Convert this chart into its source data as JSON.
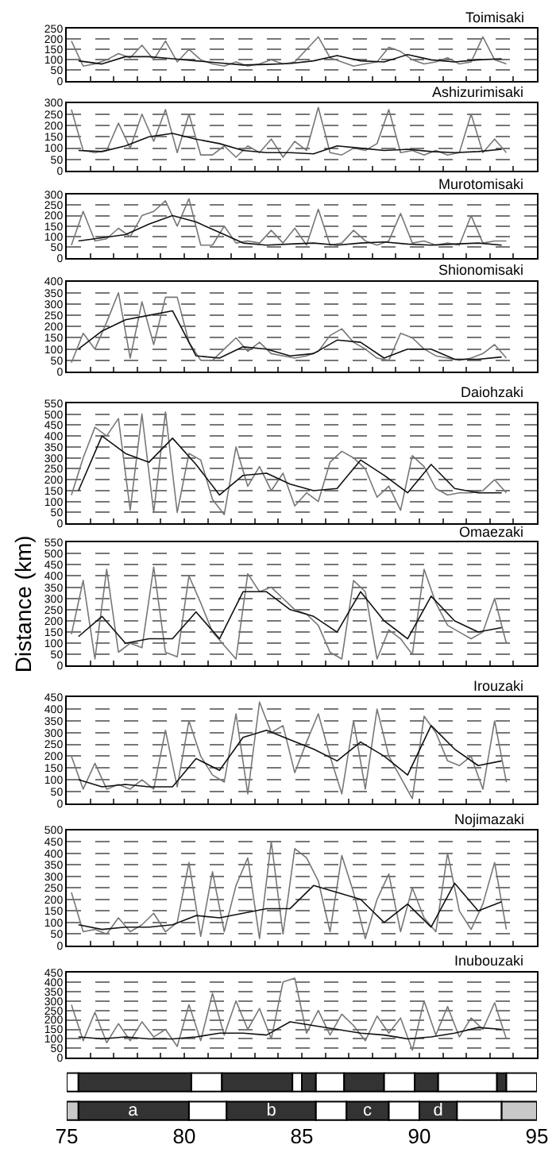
{
  "chart_data": [
    {
      "type": "line",
      "title": "Toimisaki",
      "xlim": [
        75,
        95
      ],
      "xticks": [
        75,
        76,
        77,
        78,
        79,
        80,
        81,
        82,
        83,
        84,
        85,
        86,
        87,
        88,
        89,
        90,
        91,
        92,
        93,
        94,
        95
      ],
      "ylim": [
        0,
        250
      ],
      "yticks": [
        0,
        50,
        100,
        150,
        200,
        250
      ],
      "grid": "y",
      "tick_labels": "y",
      "x": [
        75.2,
        75.7,
        76.2,
        76.7,
        77.2,
        77.7,
        78.2,
        78.7,
        79.2,
        79.7,
        80.2,
        80.7,
        81.2,
        81.7,
        82.2,
        82.7,
        83.2,
        83.7,
        84.2,
        84.7,
        85.2,
        85.7,
        86.2,
        86.7,
        87.2,
        87.7,
        88.2,
        88.7,
        89.2,
        89.7,
        90.2,
        90.7,
        91.2,
        91.7,
        92.2,
        92.7,
        93.2,
        93.7
      ],
      "series": [
        {
          "color": "#777777",
          "values": [
            190,
            70,
            80,
            100,
            130,
            110,
            170,
            100,
            190,
            90,
            150,
            100,
            80,
            70,
            90,
            70,
            80,
            100,
            80,
            90,
            150,
            210,
            110,
            90,
            70,
            80,
            90,
            160,
            140,
            100,
            80,
            90,
            110,
            80,
            90,
            210,
            100,
            80
          ]
        },
        {
          "color": "#111111",
          "x": [
            75.5,
            76.5,
            77.5,
            78.5,
            79.5,
            80.5,
            81.5,
            82.5,
            83.5,
            84.5,
            85.5,
            86.5,
            87.5,
            88.5,
            89.5,
            90.5,
            91.5,
            92.5,
            93.5
          ],
          "values": [
            95,
            80,
            115,
            115,
            105,
            95,
            85,
            75,
            78,
            82,
            95,
            120,
            95,
            90,
            125,
            100,
            90,
            100,
            105
          ]
        }
      ]
    },
    {
      "type": "line",
      "title": "Ashizurimisaki",
      "xlim": [
        75,
        95
      ],
      "xticks": [
        75,
        76,
        77,
        78,
        79,
        80,
        81,
        82,
        83,
        84,
        85,
        86,
        87,
        88,
        89,
        90,
        91,
        92,
        93,
        94,
        95
      ],
      "ylim": [
        0,
        300
      ],
      "yticks": [
        0,
        50,
        100,
        150,
        200,
        250,
        300
      ],
      "grid": "y",
      "tick_labels": "y",
      "x": [
        75.2,
        75.7,
        76.2,
        76.7,
        77.2,
        77.7,
        78.2,
        78.7,
        79.2,
        79.7,
        80.2,
        80.7,
        81.2,
        81.7,
        82.2,
        82.7,
        83.2,
        83.7,
        84.2,
        84.7,
        85.2,
        85.7,
        86.2,
        86.7,
        87.2,
        87.7,
        88.2,
        88.7,
        89.2,
        89.7,
        90.2,
        90.7,
        91.2,
        91.7,
        92.2,
        92.7,
        93.2,
        93.7
      ],
      "series": [
        {
          "color": "#777777",
          "values": [
            270,
            90,
            80,
            90,
            210,
            100,
            250,
            130,
            270,
            80,
            250,
            70,
            70,
            110,
            60,
            110,
            80,
            140,
            60,
            130,
            90,
            280,
            80,
            70,
            100,
            90,
            120,
            270,
            80,
            90,
            70,
            90,
            70,
            80,
            250,
            80,
            140,
            80
          ]
        },
        {
          "color": "#111111",
          "x": [
            75.5,
            76.5,
            77.5,
            78.5,
            79.5,
            80.5,
            81.5,
            82.5,
            83.5,
            84.5,
            85.5,
            86.5,
            87.5,
            88.5,
            89.5,
            90.5,
            91.5,
            92.5,
            93.5
          ],
          "values": [
            90,
            85,
            110,
            150,
            165,
            140,
            120,
            90,
            80,
            80,
            75,
            110,
            100,
            90,
            95,
            85,
            80,
            85,
            95
          ]
        }
      ]
    },
    {
      "type": "line",
      "title": "Murotomisaki",
      "xlim": [
        75,
        95
      ],
      "xticks": [
        75,
        76,
        77,
        78,
        79,
        80,
        81,
        82,
        83,
        84,
        85,
        86,
        87,
        88,
        89,
        90,
        91,
        92,
        93,
        94,
        95
      ],
      "ylim": [
        0,
        300
      ],
      "yticks": [
        0,
        50,
        100,
        150,
        200,
        250,
        300
      ],
      "grid": "y",
      "tick_labels": "y",
      "x": [
        75.2,
        75.7,
        76.2,
        76.7,
        77.2,
        77.7,
        78.2,
        78.7,
        79.2,
        79.7,
        80.2,
        80.7,
        81.2,
        81.7,
        82.2,
        82.7,
        83.2,
        83.7,
        84.2,
        84.7,
        85.2,
        85.7,
        86.2,
        86.7,
        87.2,
        87.7,
        88.2,
        88.7,
        89.2,
        89.7,
        90.2,
        90.7,
        91.2,
        91.7,
        92.2,
        92.7,
        93.2,
        93.7
      ],
      "series": [
        {
          "color": "#777777",
          "values": [
            60,
            220,
            80,
            90,
            140,
            100,
            200,
            220,
            270,
            150,
            280,
            60,
            60,
            150,
            70,
            80,
            70,
            130,
            70,
            140,
            60,
            230,
            60,
            70,
            130,
            80,
            60,
            80,
            210,
            70,
            80,
            60,
            70,
            60,
            200,
            70,
            80,
            80
          ]
        },
        {
          "color": "#111111",
          "x": [
            75.5,
            76.5,
            77.5,
            78.5,
            79.5,
            80.5,
            81.5,
            82.5,
            83.5,
            84.5,
            85.5,
            86.5,
            87.5,
            88.5,
            89.5,
            90.5,
            91.5,
            92.5,
            93.5
          ],
          "values": [
            80,
            95,
            110,
            160,
            200,
            170,
            120,
            70,
            60,
            65,
            70,
            60,
            70,
            75,
            65,
            60,
            65,
            70,
            60
          ]
        }
      ]
    },
    {
      "type": "line",
      "title": "Shionomisaki",
      "xlim": [
        75,
        95
      ],
      "xticks": [
        75,
        76,
        77,
        78,
        79,
        80,
        81,
        82,
        83,
        84,
        85,
        86,
        87,
        88,
        89,
        90,
        91,
        92,
        93,
        94,
        95
      ],
      "ylim": [
        0,
        400
      ],
      "yticks": [
        0,
        50,
        100,
        150,
        200,
        250,
        300,
        350,
        400
      ],
      "grid": "y",
      "tick_labels": "y",
      "x": [
        75.2,
        75.7,
        76.2,
        76.7,
        77.2,
        77.7,
        78.2,
        78.7,
        79.2,
        79.7,
        80.2,
        80.7,
        81.2,
        81.7,
        82.2,
        82.7,
        83.2,
        83.7,
        84.2,
        84.7,
        85.2,
        85.7,
        86.2,
        86.7,
        87.2,
        87.7,
        88.2,
        88.7,
        89.2,
        89.7,
        90.2,
        90.7,
        91.2,
        91.7,
        92.2,
        92.7,
        93.2,
        93.7
      ],
      "series": [
        {
          "color": "#777777",
          "values": [
            40,
            170,
            100,
            220,
            350,
            60,
            310,
            120,
            330,
            330,
            130,
            50,
            50,
            100,
            150,
            90,
            130,
            80,
            70,
            60,
            70,
            90,
            160,
            190,
            130,
            100,
            60,
            50,
            170,
            150,
            100,
            70,
            60,
            50,
            60,
            80,
            120,
            60
          ]
        },
        {
          "color": "#111111",
          "x": [
            75.5,
            76.5,
            77.5,
            78.5,
            79.5,
            80.5,
            81.5,
            82.5,
            83.5,
            84.5,
            85.5,
            86.5,
            87.5,
            88.5,
            89.5,
            90.5,
            91.5,
            92.5,
            93.5
          ],
          "values": [
            100,
            180,
            230,
            250,
            270,
            70,
            60,
            110,
            100,
            70,
            80,
            140,
            130,
            60,
            100,
            100,
            55,
            55,
            65
          ]
        }
      ]
    },
    {
      "type": "line",
      "title": "Daiohzaki",
      "xlim": [
        75,
        95
      ],
      "xticks": [
        75,
        76,
        77,
        78,
        79,
        80,
        81,
        82,
        83,
        84,
        85,
        86,
        87,
        88,
        89,
        90,
        91,
        92,
        93,
        94,
        95
      ],
      "ylim": [
        0,
        550
      ],
      "yticks": [
        0,
        50,
        100,
        150,
        200,
        250,
        300,
        350,
        400,
        450,
        500,
        550
      ],
      "grid": "y",
      "tick_labels": "y",
      "x": [
        75.2,
        75.7,
        76.2,
        76.7,
        77.2,
        77.7,
        78.2,
        78.7,
        79.2,
        79.7,
        80.2,
        80.7,
        81.2,
        81.7,
        82.2,
        82.7,
        83.2,
        83.7,
        84.2,
        84.7,
        85.2,
        85.7,
        86.2,
        86.7,
        87.2,
        87.7,
        88.2,
        88.7,
        89.2,
        89.7,
        90.2,
        90.7,
        91.2,
        91.7,
        92.2,
        92.7,
        93.2,
        93.7
      ],
      "series": [
        {
          "color": "#777777",
          "values": [
            130,
            300,
            440,
            400,
            480,
            60,
            500,
            50,
            510,
            50,
            320,
            290,
            110,
            40,
            350,
            170,
            260,
            150,
            230,
            80,
            140,
            100,
            280,
            330,
            300,
            250,
            120,
            170,
            60,
            310,
            260,
            160,
            130,
            140,
            140,
            150,
            200,
            140
          ]
        },
        {
          "color": "#111111",
          "x": [
            75.5,
            76.5,
            77.5,
            78.5,
            79.5,
            80.5,
            81.5,
            82.5,
            83.5,
            84.5,
            85.5,
            86.5,
            87.5,
            88.5,
            89.5,
            90.5,
            91.5,
            92.5,
            93.5
          ],
          "values": [
            150,
            400,
            320,
            280,
            390,
            270,
            130,
            220,
            230,
            180,
            150,
            160,
            290,
            220,
            140,
            270,
            160,
            140,
            140
          ]
        }
      ]
    },
    {
      "type": "line",
      "title": "Omaezaki",
      "ylabel": "Distance (km)",
      "xlim": [
        75,
        95
      ],
      "xticks": [
        75,
        76,
        77,
        78,
        79,
        80,
        81,
        82,
        83,
        84,
        85,
        86,
        87,
        88,
        89,
        90,
        91,
        92,
        93,
        94,
        95
      ],
      "ylim": [
        0,
        550
      ],
      "yticks": [
        0,
        50,
        100,
        150,
        200,
        250,
        300,
        350,
        400,
        450,
        500,
        550
      ],
      "grid": "y",
      "tick_labels": "y",
      "x": [
        75.2,
        75.7,
        76.2,
        76.7,
        77.2,
        77.7,
        78.2,
        78.7,
        79.2,
        79.7,
        80.2,
        80.7,
        81.2,
        81.7,
        82.2,
        82.7,
        83.2,
        83.7,
        84.2,
        84.7,
        85.2,
        85.7,
        86.2,
        86.7,
        87.2,
        87.7,
        88.2,
        88.7,
        89.2,
        89.7,
        90.2,
        90.7,
        91.2,
        91.7,
        92.2,
        92.7,
        93.2,
        93.7
      ],
      "series": [
        {
          "color": "#777777",
          "values": [
            140,
            380,
            30,
            430,
            60,
            100,
            80,
            440,
            60,
            40,
            400,
            280,
            150,
            90,
            30,
            410,
            330,
            350,
            300,
            250,
            230,
            180,
            60,
            30,
            380,
            330,
            30,
            160,
            120,
            50,
            430,
            280,
            180,
            150,
            120,
            150,
            300,
            100
          ]
        },
        {
          "color": "#111111",
          "x": [
            75.5,
            76.5,
            77.5,
            78.5,
            79.5,
            80.5,
            81.5,
            82.5,
            83.5,
            84.5,
            85.5,
            86.5,
            87.5,
            88.5,
            89.5,
            90.5,
            91.5,
            92.5,
            93.5
          ],
          "values": [
            130,
            220,
            100,
            120,
            120,
            240,
            120,
            330,
            330,
            250,
            220,
            150,
            330,
            200,
            120,
            310,
            200,
            150,
            170
          ]
        }
      ]
    },
    {
      "type": "line",
      "title": "Irouzaki",
      "xlim": [
        75,
        95
      ],
      "xticks": [
        75,
        76,
        77,
        78,
        79,
        80,
        81,
        82,
        83,
        84,
        85,
        86,
        87,
        88,
        89,
        90,
        91,
        92,
        93,
        94,
        95
      ],
      "ylim": [
        0,
        450
      ],
      "yticks": [
        0,
        50,
        100,
        150,
        200,
        250,
        300,
        350,
        400,
        450
      ],
      "grid": "y",
      "tick_labels": "y",
      "x": [
        75.2,
        75.7,
        76.2,
        76.7,
        77.2,
        77.7,
        78.2,
        78.7,
        79.2,
        79.7,
        80.2,
        80.7,
        81.2,
        81.7,
        82.2,
        82.7,
        83.2,
        83.7,
        84.2,
        84.7,
        85.2,
        85.7,
        86.2,
        86.7,
        87.2,
        87.7,
        88.2,
        88.7,
        89.2,
        89.7,
        90.2,
        90.7,
        91.2,
        91.7,
        92.2,
        92.7,
        93.2,
        93.7
      ],
      "series": [
        {
          "color": "#777777",
          "values": [
            200,
            60,
            170,
            60,
            80,
            60,
            100,
            60,
            310,
            70,
            350,
            200,
            120,
            90,
            380,
            40,
            430,
            300,
            330,
            130,
            260,
            380,
            200,
            40,
            350,
            60,
            400,
            200,
            110,
            20,
            370,
            300,
            180,
            160,
            200,
            60,
            350,
            90
          ]
        },
        {
          "color": "#111111",
          "x": [
            75.5,
            76.5,
            77.5,
            78.5,
            79.5,
            80.5,
            81.5,
            82.5,
            83.5,
            84.5,
            85.5,
            86.5,
            87.5,
            88.5,
            89.5,
            90.5,
            91.5,
            92.5,
            93.5
          ],
          "values": [
            100,
            70,
            80,
            70,
            70,
            190,
            140,
            280,
            310,
            270,
            230,
            180,
            260,
            200,
            120,
            330,
            230,
            160,
            180
          ]
        }
      ]
    },
    {
      "type": "line",
      "title": "Nojimazaki",
      "xlim": [
        75,
        95
      ],
      "xticks": [
        75,
        76,
        77,
        78,
        79,
        80,
        81,
        82,
        83,
        84,
        85,
        86,
        87,
        88,
        89,
        90,
        91,
        92,
        93,
        94,
        95
      ],
      "ylim": [
        0,
        500
      ],
      "yticks": [
        0,
        50,
        100,
        150,
        200,
        250,
        300,
        350,
        400,
        450,
        500
      ],
      "grid": "y",
      "tick_labels": "y",
      "x": [
        75.2,
        75.7,
        76.2,
        76.7,
        77.2,
        77.7,
        78.2,
        78.7,
        79.2,
        79.7,
        80.2,
        80.7,
        81.2,
        81.7,
        82.2,
        82.7,
        83.2,
        83.7,
        84.2,
        84.7,
        85.2,
        85.7,
        86.2,
        86.7,
        87.2,
        87.7,
        88.2,
        88.7,
        89.2,
        89.7,
        90.2,
        90.7,
        91.2,
        91.7,
        92.2,
        92.7,
        93.2,
        93.7
      ],
      "series": [
        {
          "color": "#777777",
          "values": [
            230,
            60,
            70,
            50,
            120,
            60,
            90,
            140,
            60,
            100,
            360,
            40,
            320,
            60,
            260,
            380,
            30,
            450,
            50,
            420,
            380,
            280,
            60,
            390,
            230,
            30,
            200,
            310,
            60,
            250,
            120,
            60,
            400,
            150,
            70,
            180,
            360,
            70
          ]
        },
        {
          "color": "#111111",
          "x": [
            75.5,
            76.5,
            77.5,
            78.5,
            79.5,
            80.5,
            81.5,
            82.5,
            83.5,
            84.5,
            85.5,
            86.5,
            87.5,
            88.5,
            89.5,
            90.5,
            91.5,
            92.5,
            93.5
          ],
          "values": [
            90,
            70,
            80,
            80,
            90,
            130,
            120,
            140,
            160,
            160,
            260,
            230,
            200,
            100,
            180,
            80,
            270,
            150,
            190
          ]
        }
      ]
    },
    {
      "type": "line",
      "title": "Inubouzaki",
      "xlim": [
        75,
        95
      ],
      "xticks": [
        75,
        76,
        77,
        78,
        79,
        80,
        81,
        82,
        83,
        84,
        85,
        86,
        87,
        88,
        89,
        90,
        91,
        92,
        93,
        94,
        95
      ],
      "ylim": [
        0,
        450
      ],
      "yticks": [
        0,
        50,
        100,
        150,
        200,
        250,
        300,
        350,
        400,
        450
      ],
      "grid": "y",
      "tick_labels": "y",
      "x": [
        75.2,
        75.7,
        76.2,
        76.7,
        77.2,
        77.7,
        78.2,
        78.7,
        79.2,
        79.7,
        80.2,
        80.7,
        81.2,
        81.7,
        82.2,
        82.7,
        83.2,
        83.7,
        84.2,
        84.7,
        85.2,
        85.7,
        86.2,
        86.7,
        87.2,
        87.7,
        88.2,
        88.7,
        89.2,
        89.7,
        90.2,
        90.7,
        91.2,
        91.7,
        92.2,
        92.7,
        93.2,
        93.7
      ],
      "series": [
        {
          "color": "#777777",
          "values": [
            280,
            90,
            240,
            80,
            180,
            90,
            190,
            110,
            150,
            60,
            280,
            90,
            340,
            120,
            300,
            150,
            260,
            100,
            400,
            420,
            130,
            250,
            120,
            230,
            170,
            90,
            220,
            130,
            210,
            40,
            300,
            120,
            270,
            110,
            210,
            150,
            290,
            100
          ]
        },
        {
          "color": "#111111",
          "x": [
            75.5,
            76.5,
            77.5,
            78.5,
            79.5,
            80.5,
            81.5,
            82.5,
            83.5,
            84.5,
            85.5,
            86.5,
            87.5,
            88.5,
            89.5,
            90.5,
            91.5,
            92.5,
            93.5
          ],
          "values": [
            110,
            100,
            110,
            100,
            100,
            110,
            130,
            130,
            120,
            190,
            170,
            150,
            130,
            120,
            100,
            110,
            130,
            160,
            150
          ]
        }
      ]
    },
    {
      "type": "bar",
      "orientation": "horizontal",
      "categories": [
        null
      ],
      "xlim": [
        75,
        95
      ],
      "xticks": [
        75,
        80,
        85,
        90,
        95
      ],
      "tick_labels": false,
      "series": [
        {
          "color": "#ffffff",
          "base": [
            75
          ],
          "values": [
            0.5
          ]
        },
        {
          "color": "#333333",
          "base": [
            75.5
          ],
          "values": [
            4.8
          ]
        },
        {
          "color": "#ffffff",
          "base": [
            80.3
          ],
          "values": [
            1.3
          ]
        },
        {
          "color": "#333333",
          "base": [
            81.6
          ],
          "values": [
            3.0
          ]
        },
        {
          "color": "#ffffff",
          "base": [
            84.6
          ],
          "values": [
            0.4
          ]
        },
        {
          "color": "#333333",
          "base": [
            85
          ],
          "values": [
            0.6
          ]
        },
        {
          "color": "#ffffff",
          "base": [
            85.6
          ],
          "values": [
            1.2
          ]
        },
        {
          "color": "#333333",
          "base": [
            86.8
          ],
          "values": [
            1.7
          ]
        },
        {
          "color": "#ffffff",
          "base": [
            88.5
          ],
          "values": [
            1.3
          ]
        },
        {
          "color": "#333333",
          "base": [
            89.8
          ],
          "values": [
            1.0
          ]
        },
        {
          "color": "#ffffff",
          "base": [
            90.8
          ],
          "values": [
            2.5
          ]
        },
        {
          "color": "#333333",
          "base": [
            93.3
          ],
          "values": [
            0.4
          ]
        },
        {
          "color": "#ffffff",
          "base": [
            93.7
          ],
          "values": [
            1.3
          ]
        }
      ]
    },
    {
      "type": "bar",
      "orientation": "horizontal",
      "categories": [
        null
      ],
      "xlim": [
        75,
        95
      ],
      "xticks": [
        75,
        80,
        85,
        90,
        95
      ],
      "tick_labels": "x",
      "series": [
        {
          "color": "#c8c8c8",
          "base": [
            75
          ],
          "values": [
            0.5
          ]
        },
        {
          "color": "#333333",
          "base": [
            75.5
          ],
          "values": [
            4.7
          ],
          "value_labels": [
            "a"
          ]
        },
        {
          "color": "#ffffff",
          "base": [
            80.2
          ],
          "values": [
            1.6
          ]
        },
        {
          "color": "#333333",
          "base": [
            81.8
          ],
          "values": [
            3.8
          ],
          "value_labels": [
            "b"
          ]
        },
        {
          "color": "#ffffff",
          "base": [
            85.6
          ],
          "values": [
            1.3
          ]
        },
        {
          "color": "#333333",
          "base": [
            86.9
          ],
          "values": [
            1.8
          ],
          "value_labels": [
            "c"
          ]
        },
        {
          "color": "#ffffff",
          "base": [
            88.7
          ],
          "values": [
            1.3
          ]
        },
        {
          "color": "#333333",
          "base": [
            90
          ],
          "values": [
            1.6
          ],
          "value_labels": [
            "d"
          ]
        },
        {
          "color": "#ffffff",
          "base": [
            91.6
          ],
          "values": [
            1.9
          ]
        },
        {
          "color": "#c8c8c8",
          "base": [
            93.5
          ],
          "values": [
            1.5
          ]
        }
      ]
    }
  ]
}
